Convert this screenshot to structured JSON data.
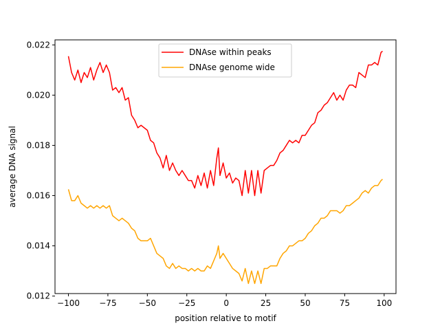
{
  "chart_data": {
    "type": "line",
    "title": "",
    "xlabel": "position relative to motif",
    "ylabel": "average DNA signal",
    "xlim": [
      -108.5,
      107.5
    ],
    "ylim": [
      0.0121,
      0.0222
    ],
    "xticks": [
      -100,
      -75,
      -50,
      -25,
      0,
      25,
      50,
      75,
      100
    ],
    "yticks": [
      0.012,
      0.014,
      0.016,
      0.018,
      0.02,
      0.022
    ],
    "ytick_labels": [
      "0.012",
      "0.014",
      "0.016",
      "0.018",
      "0.020",
      "0.022"
    ],
    "grid": false,
    "legend_position": "top-center",
    "series": [
      {
        "name": "DNAse within peaks",
        "color": "#ff0000",
        "points": [
          [
            -100,
            0.02155
          ],
          [
            -98,
            0.0209
          ],
          [
            -96,
            0.0206
          ],
          [
            -94,
            0.021
          ],
          [
            -92,
            0.0205
          ],
          [
            -90,
            0.0209
          ],
          [
            -88,
            0.0207
          ],
          [
            -86,
            0.0211
          ],
          [
            -84,
            0.0206
          ],
          [
            -82,
            0.021
          ],
          [
            -80,
            0.0213
          ],
          [
            -78,
            0.0209
          ],
          [
            -76,
            0.0212
          ],
          [
            -74,
            0.0209
          ],
          [
            -72,
            0.0202
          ],
          [
            -70,
            0.0203
          ],
          [
            -68,
            0.0201
          ],
          [
            -66,
            0.0203
          ],
          [
            -64,
            0.0198
          ],
          [
            -62,
            0.0199
          ],
          [
            -60,
            0.0192
          ],
          [
            -58,
            0.019
          ],
          [
            -56,
            0.0187
          ],
          [
            -54,
            0.0188
          ],
          [
            -52,
            0.0187
          ],
          [
            -50,
            0.0186
          ],
          [
            -48,
            0.0182
          ],
          [
            -46,
            0.0181
          ],
          [
            -44,
            0.0177
          ],
          [
            -42,
            0.0175
          ],
          [
            -40,
            0.0171
          ],
          [
            -38,
            0.0176
          ],
          [
            -36,
            0.017
          ],
          [
            -34,
            0.0173
          ],
          [
            -32,
            0.017
          ],
          [
            -30,
            0.0168
          ],
          [
            -28,
            0.017
          ],
          [
            -26,
            0.0168
          ],
          [
            -24,
            0.0166
          ],
          [
            -22,
            0.0166
          ],
          [
            -20,
            0.0163
          ],
          [
            -18,
            0.0168
          ],
          [
            -16,
            0.0164
          ],
          [
            -14,
            0.0169
          ],
          [
            -12,
            0.0163
          ],
          [
            -10,
            0.017
          ],
          [
            -8,
            0.0164
          ],
          [
            -6,
            0.0175
          ],
          [
            -5,
            0.0179
          ],
          [
            -4,
            0.0168
          ],
          [
            -2,
            0.0173
          ],
          [
            0,
            0.0167
          ],
          [
            2,
            0.0169
          ],
          [
            4,
            0.0165
          ],
          [
            6,
            0.0167
          ],
          [
            8,
            0.0166
          ],
          [
            10,
            0.016
          ],
          [
            12,
            0.017
          ],
          [
            14,
            0.0161
          ],
          [
            16,
            0.017
          ],
          [
            18,
            0.016
          ],
          [
            20,
            0.017
          ],
          [
            22,
            0.0161
          ],
          [
            24,
            0.017
          ],
          [
            26,
            0.0171
          ],
          [
            28,
            0.0172
          ],
          [
            30,
            0.0172
          ],
          [
            32,
            0.0174
          ],
          [
            34,
            0.0177
          ],
          [
            36,
            0.0178
          ],
          [
            38,
            0.018
          ],
          [
            40,
            0.0182
          ],
          [
            42,
            0.0181
          ],
          [
            44,
            0.0182
          ],
          [
            46,
            0.0181
          ],
          [
            48,
            0.0184
          ],
          [
            50,
            0.0184
          ],
          [
            52,
            0.0186
          ],
          [
            54,
            0.0188
          ],
          [
            56,
            0.0189
          ],
          [
            58,
            0.0193
          ],
          [
            60,
            0.0194
          ],
          [
            62,
            0.0196
          ],
          [
            64,
            0.0197
          ],
          [
            66,
            0.0199
          ],
          [
            68,
            0.0201
          ],
          [
            70,
            0.0198
          ],
          [
            72,
            0.02
          ],
          [
            74,
            0.0198
          ],
          [
            76,
            0.0202
          ],
          [
            78,
            0.0204
          ],
          [
            80,
            0.0204
          ],
          [
            82,
            0.0203
          ],
          [
            84,
            0.0209
          ],
          [
            86,
            0.0208
          ],
          [
            88,
            0.0207
          ],
          [
            90,
            0.0212
          ],
          [
            92,
            0.0212
          ],
          [
            94,
            0.0213
          ],
          [
            96,
            0.0212
          ],
          [
            98,
            0.0217
          ],
          [
            99,
            0.02175
          ]
        ]
      },
      {
        "name": "DNAse genome wide",
        "color": "#ffa500",
        "points": [
          [
            -100,
            0.01625
          ],
          [
            -98,
            0.0158
          ],
          [
            -96,
            0.0158
          ],
          [
            -94,
            0.016
          ],
          [
            -92,
            0.0157
          ],
          [
            -90,
            0.0156
          ],
          [
            -88,
            0.0155
          ],
          [
            -86,
            0.0156
          ],
          [
            -84,
            0.0155
          ],
          [
            -82,
            0.0156
          ],
          [
            -80,
            0.0155
          ],
          [
            -78,
            0.0156
          ],
          [
            -76,
            0.0155
          ],
          [
            -74,
            0.0156
          ],
          [
            -72,
            0.0152
          ],
          [
            -70,
            0.0151
          ],
          [
            -68,
            0.015
          ],
          [
            -66,
            0.0151
          ],
          [
            -64,
            0.015
          ],
          [
            -62,
            0.0149
          ],
          [
            -60,
            0.0147
          ],
          [
            -58,
            0.0146
          ],
          [
            -56,
            0.0143
          ],
          [
            -54,
            0.0142
          ],
          [
            -52,
            0.0142
          ],
          [
            -50,
            0.0142
          ],
          [
            -48,
            0.0143
          ],
          [
            -46,
            0.014
          ],
          [
            -44,
            0.0137
          ],
          [
            -42,
            0.0136
          ],
          [
            -40,
            0.0135
          ],
          [
            -38,
            0.0132
          ],
          [
            -36,
            0.0131
          ],
          [
            -34,
            0.0133
          ],
          [
            -32,
            0.0131
          ],
          [
            -30,
            0.0132
          ],
          [
            -28,
            0.0131
          ],
          [
            -26,
            0.0131
          ],
          [
            -24,
            0.013
          ],
          [
            -22,
            0.0131
          ],
          [
            -20,
            0.013
          ],
          [
            -18,
            0.0131
          ],
          [
            -16,
            0.013
          ],
          [
            -14,
            0.013
          ],
          [
            -12,
            0.0132
          ],
          [
            -10,
            0.0131
          ],
          [
            -8,
            0.0134
          ],
          [
            -6,
            0.0137
          ],
          [
            -5,
            0.014
          ],
          [
            -4,
            0.0135
          ],
          [
            -2,
            0.0137
          ],
          [
            0,
            0.0135
          ],
          [
            2,
            0.0133
          ],
          [
            4,
            0.0131
          ],
          [
            6,
            0.013
          ],
          [
            8,
            0.0129
          ],
          [
            10,
            0.0126
          ],
          [
            12,
            0.0131
          ],
          [
            14,
            0.0125
          ],
          [
            16,
            0.013
          ],
          [
            18,
            0.0125
          ],
          [
            20,
            0.013
          ],
          [
            22,
            0.0125
          ],
          [
            24,
            0.0131
          ],
          [
            26,
            0.0131
          ],
          [
            28,
            0.0132
          ],
          [
            30,
            0.0132
          ],
          [
            32,
            0.0132
          ],
          [
            34,
            0.0135
          ],
          [
            36,
            0.0137
          ],
          [
            38,
            0.0138
          ],
          [
            40,
            0.014
          ],
          [
            42,
            0.014
          ],
          [
            44,
            0.0141
          ],
          [
            46,
            0.0142
          ],
          [
            48,
            0.0142
          ],
          [
            50,
            0.0143
          ],
          [
            52,
            0.0145
          ],
          [
            54,
            0.0146
          ],
          [
            56,
            0.0148
          ],
          [
            58,
            0.0149
          ],
          [
            60,
            0.0151
          ],
          [
            62,
            0.0151
          ],
          [
            64,
            0.0152
          ],
          [
            66,
            0.0154
          ],
          [
            68,
            0.0154
          ],
          [
            70,
            0.0154
          ],
          [
            72,
            0.0153
          ],
          [
            74,
            0.0154
          ],
          [
            76,
            0.0156
          ],
          [
            78,
            0.0156
          ],
          [
            80,
            0.0157
          ],
          [
            82,
            0.0158
          ],
          [
            84,
            0.0159
          ],
          [
            86,
            0.0161
          ],
          [
            88,
            0.0162
          ],
          [
            90,
            0.0161
          ],
          [
            92,
            0.0163
          ],
          [
            94,
            0.0164
          ],
          [
            96,
            0.0164
          ],
          [
            98,
            0.0166
          ],
          [
            99,
            0.01665
          ]
        ]
      }
    ]
  }
}
